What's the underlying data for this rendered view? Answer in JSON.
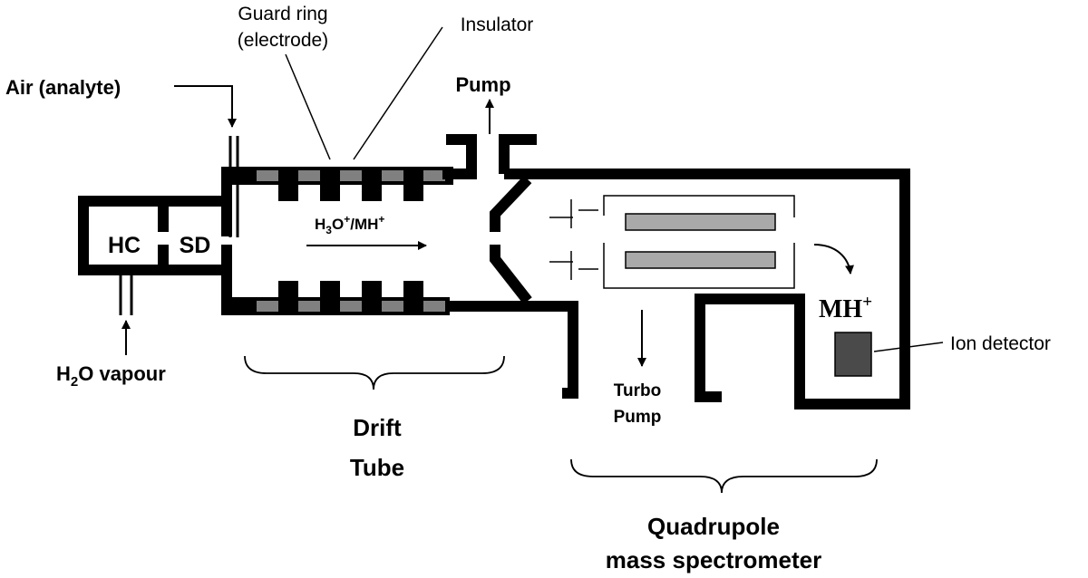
{
  "labels": {
    "guard_ring_line1": "Guard ring",
    "guard_ring_line2": "(electrode)",
    "insulator": "Insulator",
    "air_analyte": "Air (analyte)",
    "pump": "Pump",
    "hc": "HC",
    "sd": "SD",
    "h2o_main": "H",
    "h2o_sub": "2",
    "h2o_rest": "O vapour",
    "ion_h3o_main": "H",
    "ion_h3o_sub": "3",
    "ion_h3o_o": "O",
    "ion_h3o_sup": "+",
    "ion_mh": "/MH",
    "ion_mh_sup": "+",
    "mh_main": "MH",
    "mh_sup": "+",
    "ion_detector": "Ion detector",
    "turbo_line1": "Turbo",
    "turbo_line2": "Pump",
    "drift_line1": "Drift",
    "drift_line2": "Tube",
    "quad_line1": "Quadrupole",
    "quad_line2": "mass spectrometer"
  },
  "colors": {
    "wall": "#000000",
    "insulator": "#808080",
    "rod": "#a9a9a9",
    "detector": "#4a4a4a"
  }
}
